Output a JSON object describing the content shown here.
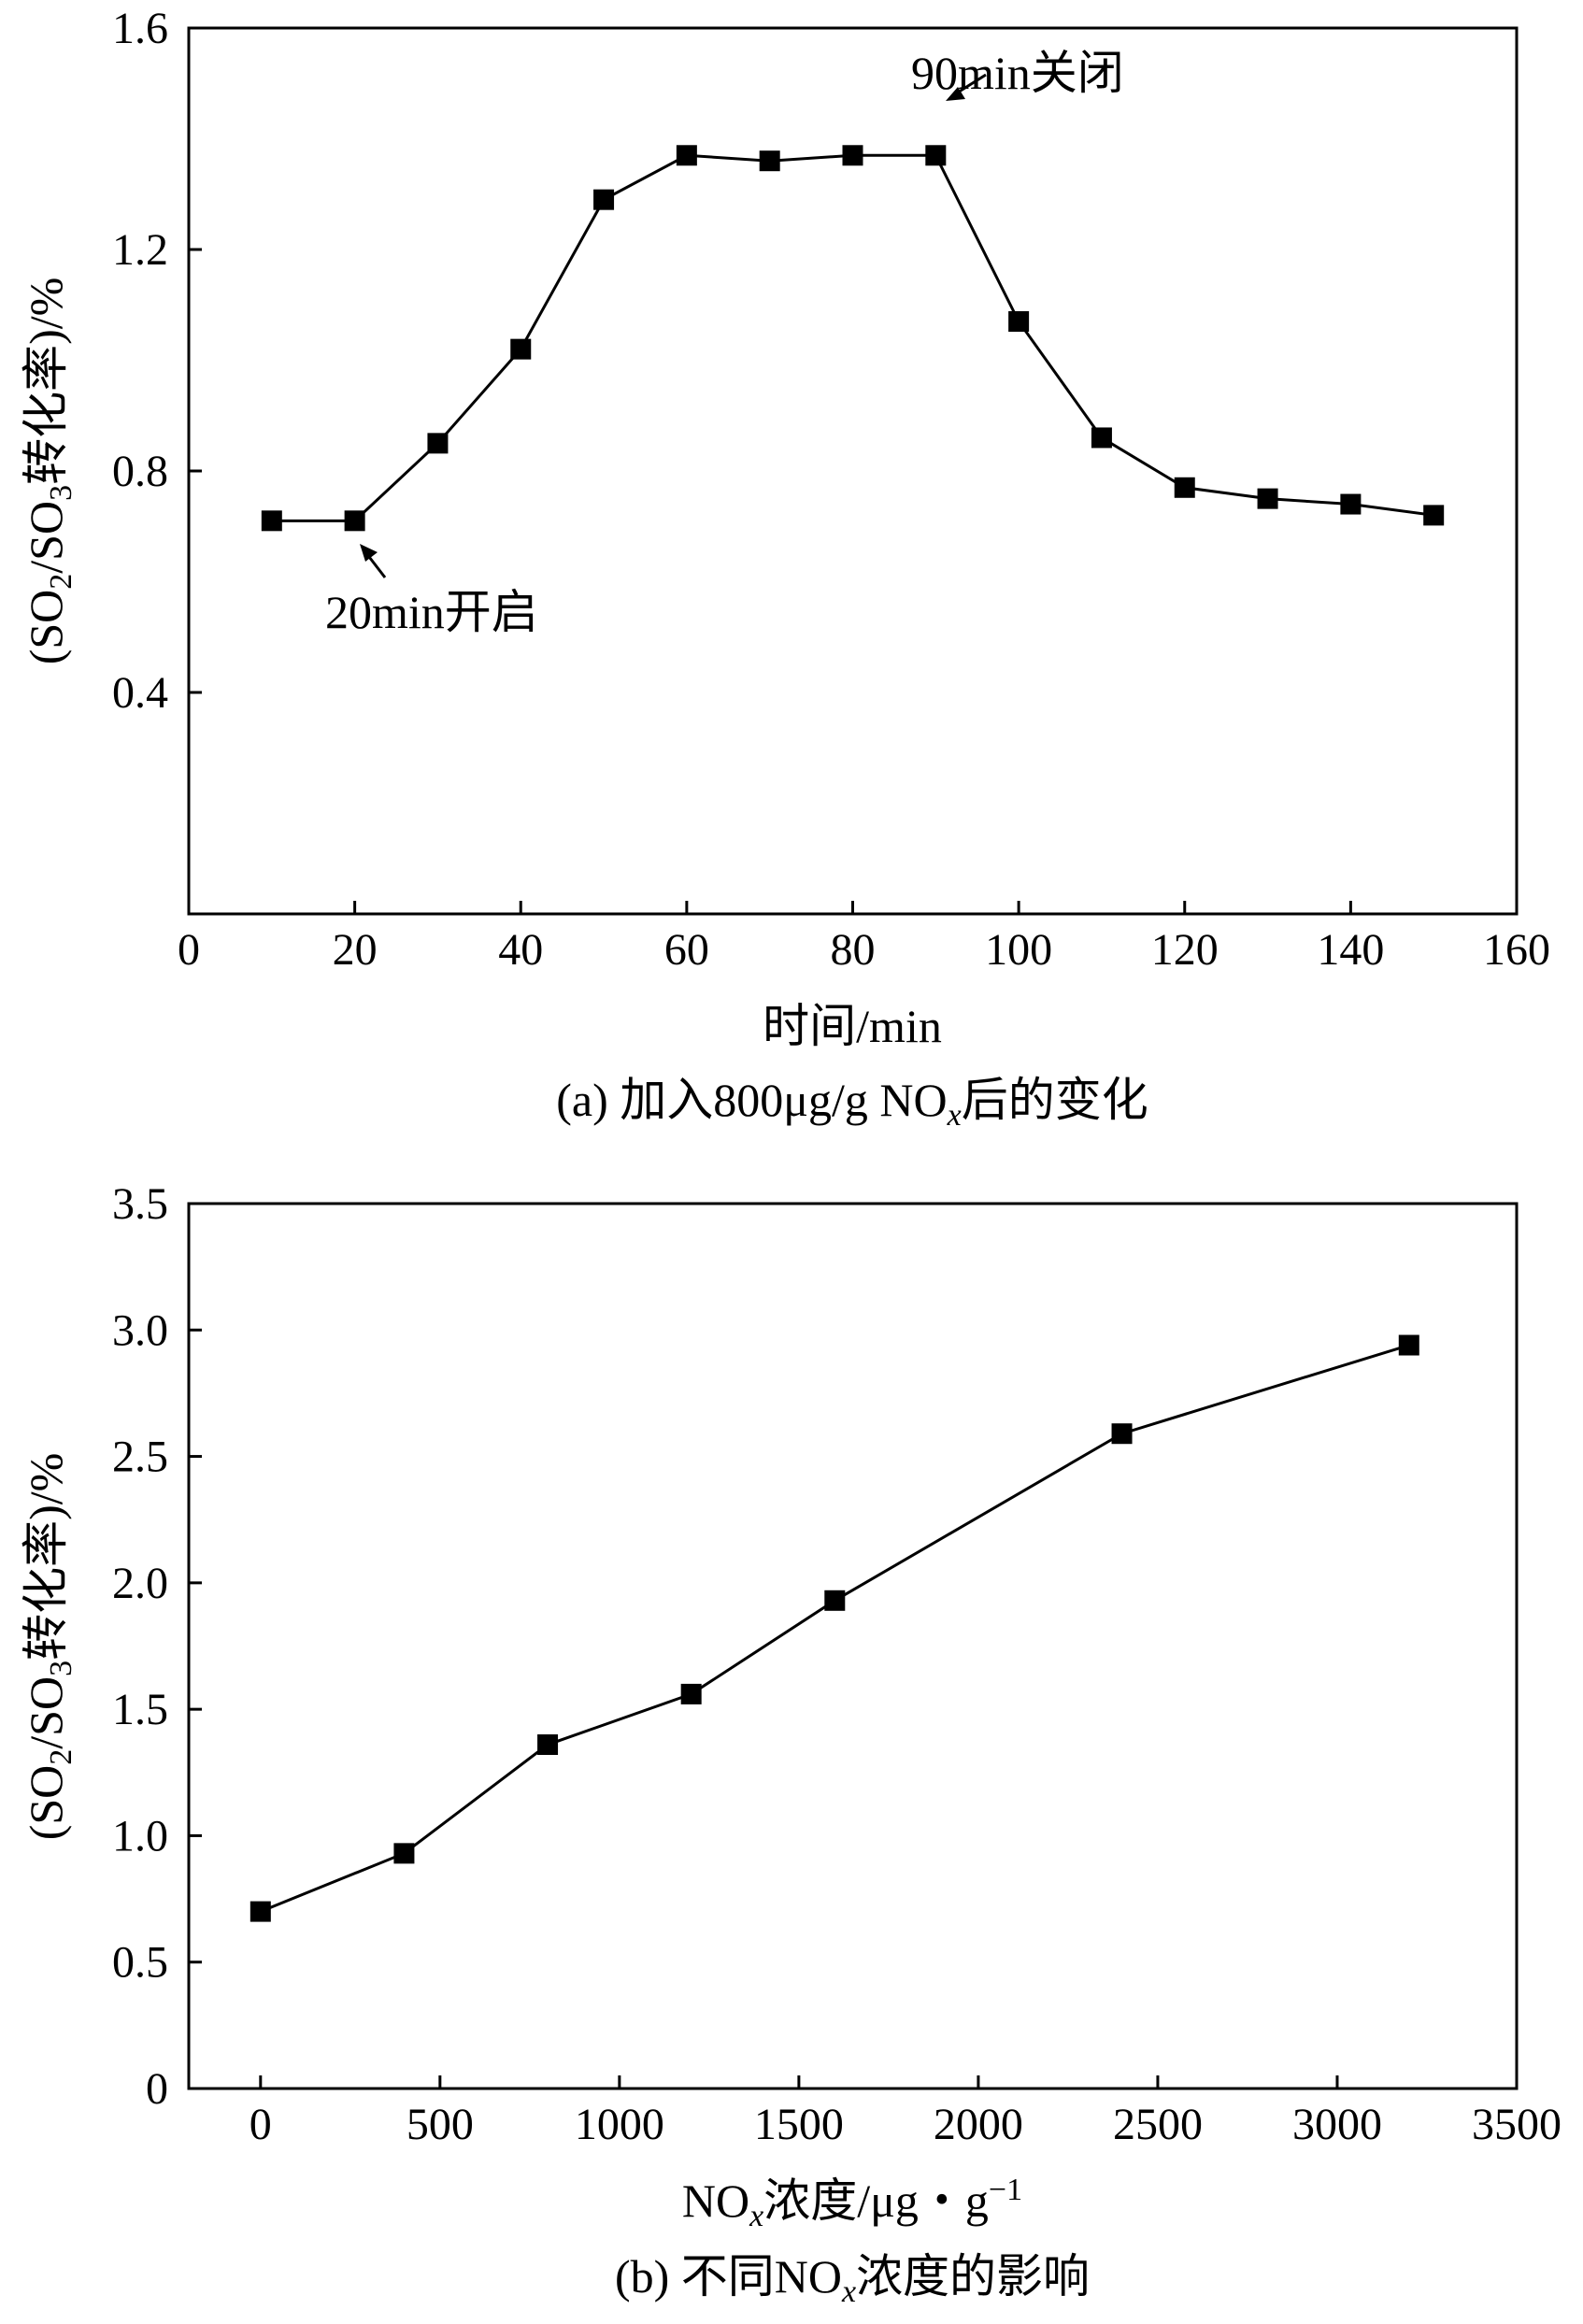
{
  "chart_data": [
    {
      "type": "line",
      "caption": {
        "prefix": "(a) 加入800μg/g NO",
        "sub": "x",
        "suffix": "后的变化"
      },
      "xlabel": "时间/min",
      "ylabel": {
        "p1": "(SO",
        "s1": "2",
        "p2": "/SO",
        "s2": "3",
        "p3": "转化率)/%"
      },
      "xlim": [
        0,
        160
      ],
      "ylim": [
        0,
        1.6
      ],
      "xticks": [
        0,
        20,
        40,
        60,
        80,
        100,
        120,
        140,
        160
      ],
      "xtick_labels": [
        "0",
        "20",
        "40",
        "60",
        "80",
        "100",
        "120",
        "140",
        "160"
      ],
      "yticks": [
        0.4,
        0.8,
        1.2,
        1.6
      ],
      "ytick_labels": [
        "0.4",
        "0.8",
        "1.2",
        "1.6"
      ],
      "series": [
        {
          "x": [
            10,
            20,
            30,
            40,
            50,
            60,
            70,
            80,
            90,
            100,
            110,
            120,
            130,
            140,
            150
          ],
          "y": [
            0.71,
            0.71,
            0.85,
            1.02,
            1.29,
            1.37,
            1.36,
            1.37,
            1.37,
            1.07,
            0.86,
            0.77,
            0.75,
            0.74,
            0.72
          ]
        }
      ],
      "annotations": [
        {
          "text": "20min开启",
          "x": 20,
          "y": 0.71
        },
        {
          "text": "90min关闭",
          "x": 90,
          "y": 1.37
        }
      ],
      "grid": false,
      "marker": "square"
    },
    {
      "type": "line",
      "caption": {
        "prefix": "(b) 不同NO",
        "sub": "x",
        "suffix": "浓度的影响"
      },
      "xlabel": {
        "p1": "NO",
        "s1": "x",
        "p2": "浓度/μg・g",
        "sup": "−1"
      },
      "ylabel": {
        "p1": "(SO",
        "s1": "2",
        "p2": "/SO",
        "s2": "3",
        "p3": "转化率)/%"
      },
      "xlim": [
        -200,
        3500
      ],
      "ylim": [
        0,
        3.5
      ],
      "xticks": [
        0,
        500,
        1000,
        1500,
        2000,
        2500,
        3000,
        3500
      ],
      "xtick_labels": [
        "0",
        "500",
        "1000",
        "1500",
        "2000",
        "2500",
        "3000",
        "3500"
      ],
      "yticks": [
        0,
        0.5,
        1.0,
        1.5,
        2.0,
        2.5,
        3.0,
        3.5
      ],
      "ytick_labels": [
        "0",
        "0.5",
        "1.0",
        "1.5",
        "2.0",
        "2.5",
        "3.0",
        "3.5"
      ],
      "series": [
        {
          "x": [
            0,
            400,
            800,
            1200,
            1600,
            2400,
            3200
          ],
          "y": [
            0.7,
            0.93,
            1.36,
            1.56,
            1.93,
            2.59,
            2.94
          ]
        }
      ],
      "grid": false,
      "marker": "square"
    }
  ]
}
